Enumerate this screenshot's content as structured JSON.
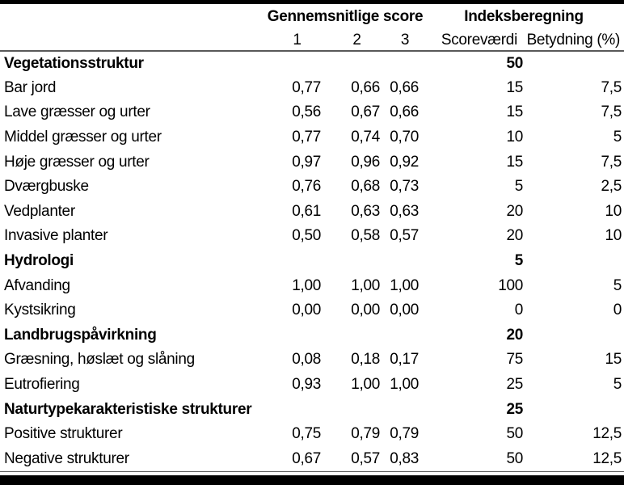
{
  "table": {
    "group_headers": {
      "scores": "Gennemsnitlige score",
      "index": "Indeksberegning"
    },
    "column_headers": {
      "c1": "1",
      "c2": "2",
      "c3": "3",
      "scorevaerdi": "Scoreværdi",
      "betydning": "Betydning (%)"
    },
    "rows": [
      {
        "type": "section",
        "label": "Vegetationsstruktur",
        "s1": "",
        "s2": "",
        "s3": "",
        "scorevaerdi": "50",
        "betydning": ""
      },
      {
        "type": "data",
        "label": "Bar jord",
        "s1": "0,77",
        "s2": "0,66",
        "s3": "0,66",
        "scorevaerdi": "15",
        "betydning": "7,5"
      },
      {
        "type": "data",
        "label": "Lave græsser og urter",
        "s1": "0,56",
        "s2": "0,67",
        "s3": "0,66",
        "scorevaerdi": "15",
        "betydning": "7,5"
      },
      {
        "type": "data",
        "label": "Middel græsser og urter",
        "s1": "0,77",
        "s2": "0,74",
        "s3": "0,70",
        "scorevaerdi": "10",
        "betydning": "5"
      },
      {
        "type": "data",
        "label": "Høje græsser og urter",
        "s1": "0,97",
        "s2": "0,96",
        "s3": "0,92",
        "scorevaerdi": "15",
        "betydning": "7,5"
      },
      {
        "type": "data",
        "label": "Dværgbuske",
        "s1": "0,76",
        "s2": "0,68",
        "s3": "0,73",
        "scorevaerdi": "5",
        "betydning": "2,5"
      },
      {
        "type": "data",
        "label": "Vedplanter",
        "s1": "0,61",
        "s2": "0,63",
        "s3": "0,63",
        "scorevaerdi": "20",
        "betydning": "10"
      },
      {
        "type": "data",
        "label": "Invasive planter",
        "s1": "0,50",
        "s2": "0,58",
        "s3": "0,57",
        "scorevaerdi": "20",
        "betydning": "10"
      },
      {
        "type": "section",
        "label": "Hydrologi",
        "s1": "",
        "s2": "",
        "s3": "",
        "scorevaerdi": "5",
        "betydning": ""
      },
      {
        "type": "data",
        "label": "Afvanding",
        "s1": "1,00",
        "s2": "1,00",
        "s3": "1,00",
        "scorevaerdi": "100",
        "betydning": "5"
      },
      {
        "type": "data",
        "label": "Kystsikring",
        "s1": "0,00",
        "s2": "0,00",
        "s3": "0,00",
        "scorevaerdi": "0",
        "betydning": "0"
      },
      {
        "type": "section",
        "label": "Landbrugspåvirkning",
        "s1": "",
        "s2": "",
        "s3": "",
        "scorevaerdi": "20",
        "betydning": ""
      },
      {
        "type": "data",
        "label": "Græsning, høslæt og slåning",
        "s1": "0,08",
        "s2": "0,18",
        "s3": "0,17",
        "scorevaerdi": "75",
        "betydning": "15"
      },
      {
        "type": "data",
        "label": "Eutrofiering",
        "s1": "0,93",
        "s2": "1,00",
        "s3": "1,00",
        "scorevaerdi": "25",
        "betydning": "5"
      },
      {
        "type": "section",
        "label": "Naturtypekarakteristiske strukturer",
        "s1": "",
        "s2": "",
        "s3": "",
        "scorevaerdi": "25",
        "betydning": ""
      },
      {
        "type": "data",
        "label": "Positive strukturer",
        "s1": "0,75",
        "s2": "0,79",
        "s3": "0,79",
        "scorevaerdi": "50",
        "betydning": "12,5"
      },
      {
        "type": "data",
        "label": "Negative strukturer",
        "s1": "0,67",
        "s2": "0,57",
        "s3": "0,83",
        "scorevaerdi": "50",
        "betydning": "12,5"
      }
    ]
  },
  "colors": {
    "border_heavy": "#000000",
    "border_light": "#595959",
    "text": "#000000",
    "background": "#ffffff"
  }
}
